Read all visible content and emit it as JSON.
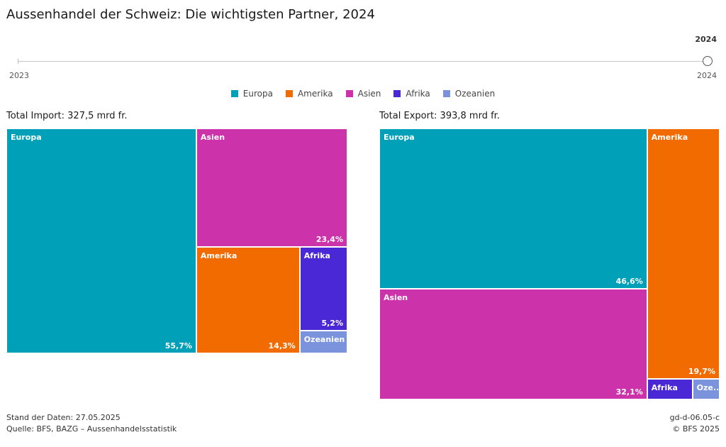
{
  "title": "Aussenhandel der Schweiz: Die wichtigsten Partner, 2024",
  "slider": {
    "selected": "2024",
    "min_label": "2023",
    "max_label": "2024"
  },
  "legend": [
    {
      "name": "Europa",
      "color": "#00a0b8"
    },
    {
      "name": "Amerika",
      "color": "#f26b00"
    },
    {
      "name": "Asien",
      "color": "#cc33aa"
    },
    {
      "name": "Afrika",
      "color": "#4a28d6"
    },
    {
      "name": "Ozeanien",
      "color": "#7b93dc"
    }
  ],
  "chart_data": [
    {
      "type": "treemap",
      "title": "Total Import: 327,5 mrd fr.",
      "items": [
        {
          "name": "Europa",
          "share": 55.7,
          "label": "55,7%",
          "color": "#00a0b8"
        },
        {
          "name": "Asien",
          "share": 23.4,
          "label": "23,4%",
          "color": "#cc33aa"
        },
        {
          "name": "Amerika",
          "share": 14.3,
          "label": "14,3%",
          "color": "#f26b00"
        },
        {
          "name": "Afrika",
          "share": 5.2,
          "label": "5,2%",
          "color": "#4a28d6"
        },
        {
          "name": "Ozeanien",
          "share": 1.4,
          "label": "",
          "color": "#7b93dc"
        }
      ]
    },
    {
      "type": "treemap",
      "title": "Total Export: 393,8 mrd fr.",
      "items": [
        {
          "name": "Europa",
          "share": 46.6,
          "label": "46,6%",
          "color": "#00a0b8"
        },
        {
          "name": "Asien",
          "share": 32.1,
          "label": "32,1%",
          "color": "#cc33aa"
        },
        {
          "name": "Amerika",
          "share": 19.7,
          "label": "19,7%",
          "color": "#f26b00"
        },
        {
          "name": "Afrika",
          "share": 1.0,
          "label": "",
          "color": "#4a28d6"
        },
        {
          "name": "Ozeanien",
          "share": 0.6,
          "label": "",
          "display_name": "Oze...",
          "color": "#7b93dc"
        }
      ]
    }
  ],
  "footer": {
    "stand": "Stand der Daten: 27.05.2025",
    "quelle": "Quelle: BFS, BAZG – Aussenhandelsstatistik",
    "code": "gd-d-06.05-c",
    "copyright": "© BFS 2025"
  }
}
